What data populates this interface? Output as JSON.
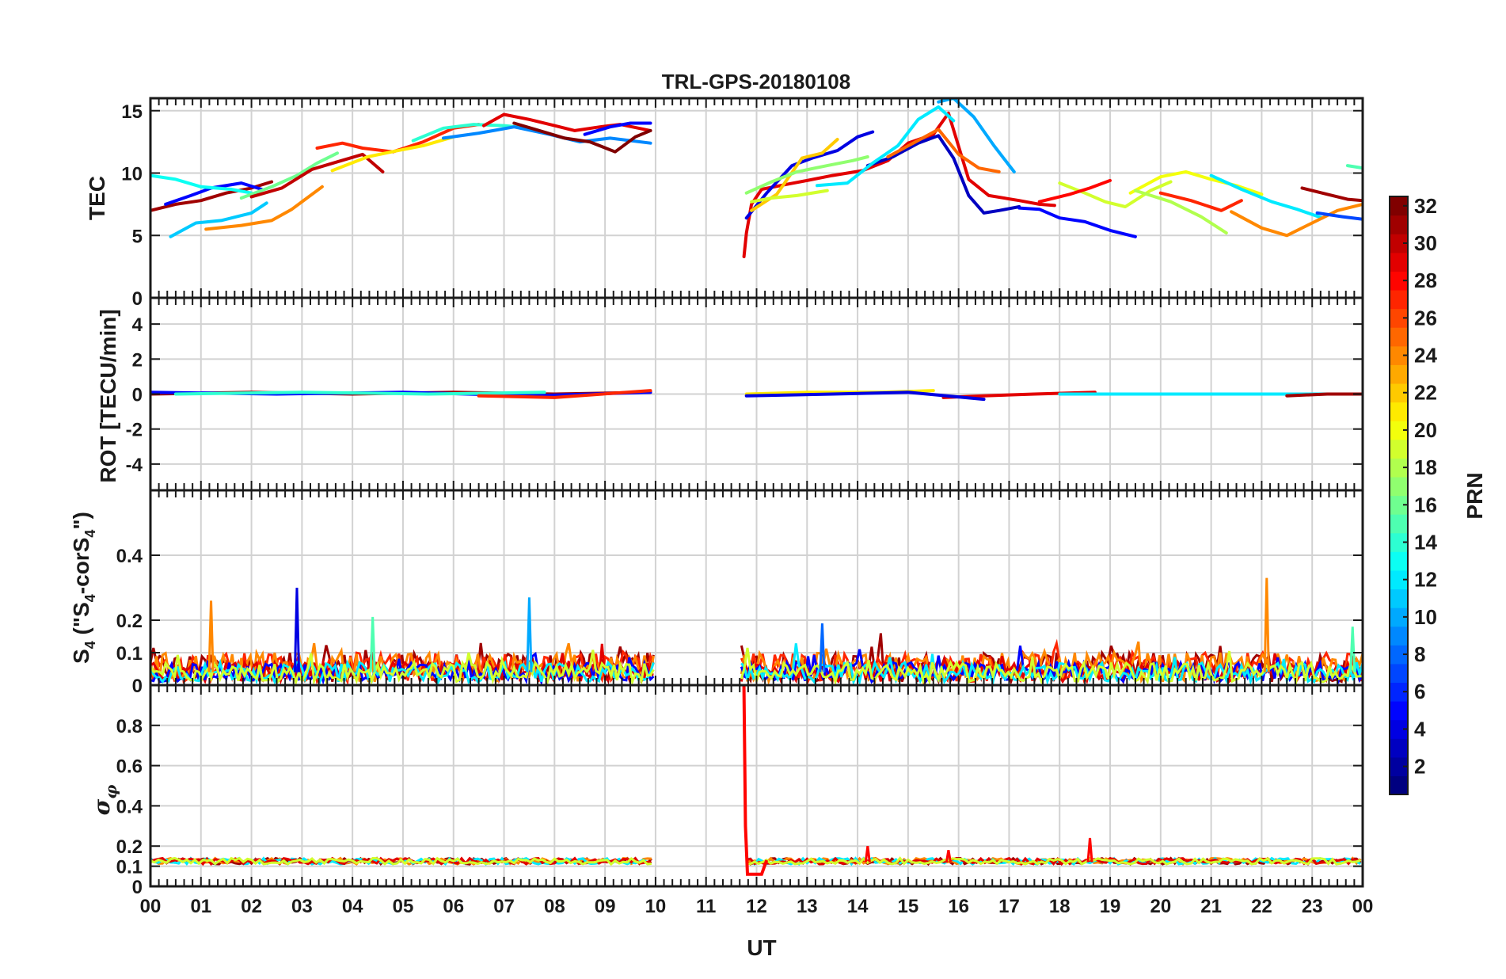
{
  "chart_data": {
    "type": "line",
    "title": "TRL-GPS-20180108",
    "xlabel": "UT",
    "xlim": [
      0,
      24
    ],
    "x_tick_labels": [
      "00",
      "01",
      "02",
      "03",
      "04",
      "05",
      "06",
      "07",
      "08",
      "09",
      "10",
      "11",
      "12",
      "13",
      "14",
      "15",
      "16",
      "17",
      "18",
      "19",
      "20",
      "21",
      "22",
      "23",
      "00"
    ],
    "grid": true,
    "data_gap_hours": [
      10.0,
      11.7
    ],
    "colorbar": {
      "label": "PRN",
      "range": [
        1,
        32
      ],
      "colormap": "jet",
      "tick_labels": [
        "2",
        "4",
        "6",
        "8",
        "10",
        "12",
        "14",
        "16",
        "18",
        "20",
        "22",
        "24",
        "26",
        "28",
        "30",
        "32"
      ]
    },
    "panels": [
      {
        "name": "TEC",
        "ylabel": "TEC",
        "ylim": [
          0,
          16
        ],
        "y_ticks": [
          0,
          5,
          10,
          15
        ],
        "y_tick_labels": [
          "0",
          "5",
          "10",
          "15"
        ],
        "series": [
          {
            "prn": 31,
            "x": [
              0.0,
              0.5,
              1.0,
              1.5,
              2.0,
              2.4
            ],
            "y": [
              7.0,
              7.5,
              7.8,
              8.4,
              8.8,
              9.3
            ]
          },
          {
            "prn": 5,
            "x": [
              0.3,
              0.8,
              1.2,
              1.8,
              2.2
            ],
            "y": [
              7.5,
              8.2,
              8.8,
              9.2,
              8.7
            ]
          },
          {
            "prn": 13,
            "x": [
              0.0,
              0.5,
              1.0,
              1.6,
              2.0
            ],
            "y": [
              9.8,
              9.5,
              8.9,
              8.7,
              8.4
            ]
          },
          {
            "prn": 11,
            "x": [
              0.4,
              0.9,
              1.4,
              2.0,
              2.3
            ],
            "y": [
              4.9,
              6.0,
              6.2,
              6.8,
              7.6
            ]
          },
          {
            "prn": 24,
            "x": [
              1.1,
              1.8,
              2.4,
              2.8,
              3.4
            ],
            "y": [
              5.5,
              5.8,
              6.2,
              7.1,
              8.9
            ]
          },
          {
            "prn": 16,
            "x": [
              1.8,
              2.4,
              2.9,
              3.3,
              3.7
            ],
            "y": [
              8.0,
              8.9,
              9.8,
              10.8,
              11.6
            ]
          },
          {
            "prn": 30,
            "x": [
              2.0,
              2.6,
              3.2,
              3.7,
              4.2,
              4.6
            ],
            "y": [
              8.1,
              8.8,
              10.3,
              10.9,
              11.5,
              10.1
            ]
          },
          {
            "prn": 27,
            "x": [
              3.3,
              3.8,
              4.2,
              4.8,
              5.4,
              6.0,
              6.5
            ],
            "y": [
              12.0,
              12.4,
              12.0,
              11.7,
              12.5,
              13.6,
              13.9
            ]
          },
          {
            "prn": 21,
            "x": [
              3.6,
              4.3,
              4.9,
              5.4,
              6.0
            ],
            "y": [
              10.2,
              11.3,
              11.8,
              12.2,
              12.9
            ]
          },
          {
            "prn": 14,
            "x": [
              5.2,
              5.8,
              6.4,
              7.0,
              7.5
            ],
            "y": [
              12.6,
              13.6,
              13.9,
              13.8,
              13.6
            ]
          },
          {
            "prn": 9,
            "x": [
              5.8,
              6.5,
              7.2,
              7.9,
              8.5,
              9.1,
              9.9
            ],
            "y": [
              12.8,
              13.2,
              13.7,
              13.1,
              12.5,
              12.8,
              12.4
            ]
          },
          {
            "prn": 29,
            "x": [
              6.6,
              7.0,
              7.5,
              8.0,
              8.4,
              8.9,
              9.3,
              9.9
            ],
            "y": [
              13.8,
              14.7,
              14.3,
              13.8,
              13.4,
              13.7,
              13.9,
              13.4
            ]
          },
          {
            "prn": 32,
            "x": [
              7.2,
              7.7,
              8.2,
              8.7,
              9.2,
              9.6,
              9.9
            ],
            "y": [
              14.0,
              13.4,
              12.8,
              12.5,
              11.7,
              12.9,
              13.4
            ]
          },
          {
            "prn": 5,
            "x": [
              8.6,
              9.1,
              9.5,
              9.9
            ],
            "y": [
              13.1,
              13.7,
              14.0,
              14.0
            ]
          },
          {
            "prn": 29,
            "x": [
              11.75,
              11.8,
              11.9,
              12.1,
              12.6,
              13.0,
              13.5,
              14.1,
              14.6,
              15.0,
              15.5,
              15.8,
              16.2,
              16.6,
              17.2,
              17.6,
              17.9
            ],
            "y": [
              3.3,
              5.2,
              7.5,
              8.7,
              9.1,
              9.4,
              9.8,
              10.2,
              11.0,
              12.4,
              13.1,
              14.8,
              9.5,
              8.2,
              7.8,
              7.5,
              7.4
            ]
          },
          {
            "prn": 4,
            "x": [
              11.8,
              12.2,
              12.7,
              13.1,
              13.6,
              14.0,
              14.3
            ],
            "y": [
              6.4,
              8.4,
              10.6,
              11.2,
              11.8,
              12.9,
              13.3
            ]
          },
          {
            "prn": 22,
            "x": [
              11.9,
              12.4,
              12.9,
              13.3,
              13.6
            ],
            "y": [
              7.0,
              8.3,
              11.2,
              11.6,
              12.7
            ]
          },
          {
            "prn": 17,
            "x": [
              11.8,
              12.3,
              12.8,
              13.4,
              13.9,
              14.2
            ],
            "y": [
              8.4,
              9.3,
              10.1,
              10.6,
              11.0,
              11.3
            ]
          },
          {
            "prn": 19,
            "x": [
              11.9,
              12.3,
              12.8,
              13.4
            ],
            "y": [
              7.7,
              8.0,
              8.2,
              8.6
            ]
          },
          {
            "prn": 3,
            "x": [
              14.2,
              14.7,
              15.2,
              15.6,
              15.9,
              16.2,
              16.5,
              16.8,
              17.2
            ],
            "y": [
              10.6,
              11.3,
              12.4,
              13.0,
              11.2,
              8.2,
              6.8,
              7.0,
              7.3
            ]
          },
          {
            "prn": 12,
            "x": [
              13.2,
              13.8,
              14.3,
              14.8,
              15.2,
              15.6,
              15.9
            ],
            "y": [
              9.0,
              9.2,
              10.8,
              12.2,
              14.3,
              15.3,
              14.2
            ]
          },
          {
            "prn": 10,
            "x": [
              15.6,
              15.9,
              16.3,
              16.7,
              17.1
            ],
            "y": [
              15.7,
              16.0,
              14.5,
              12.2,
              10.1
            ]
          },
          {
            "prn": 25,
            "x": [
              14.6,
              15.1,
              15.6,
              16.0,
              16.4,
              16.8
            ],
            "y": [
              11.3,
              12.4,
              13.5,
              11.5,
              10.4,
              10.1
            ]
          },
          {
            "prn": 5,
            "x": [
              17.2,
              17.6,
              18.0,
              18.5,
              19.0,
              19.5
            ],
            "y": [
              7.2,
              7.1,
              6.4,
              6.1,
              5.4,
              4.9
            ]
          },
          {
            "prn": 19,
            "x": [
              18.0,
              18.5,
              18.9,
              19.3,
              19.8,
              20.2
            ],
            "y": [
              9.2,
              8.4,
              7.7,
              7.3,
              8.6,
              9.3
            ]
          },
          {
            "prn": 28,
            "x": [
              17.6,
              18.2,
              18.6,
              19.0
            ],
            "y": [
              7.7,
              8.3,
              8.8,
              9.4
            ]
          },
          {
            "prn": 20,
            "x": [
              19.4,
              20.0,
              20.5,
              21.0,
              21.5,
              22.0
            ],
            "y": [
              8.4,
              9.7,
              10.1,
              9.5,
              9.0,
              8.3
            ]
          },
          {
            "prn": 18,
            "x": [
              19.5,
              20.2,
              20.8,
              21.3
            ],
            "y": [
              8.6,
              7.7,
              6.5,
              5.2
            ]
          },
          {
            "prn": 12,
            "x": [
              21.0,
              21.6,
              22.2,
              22.7,
              23.2
            ],
            "y": [
              9.8,
              8.7,
              7.7,
              7.1,
              6.4
            ]
          },
          {
            "prn": 27,
            "x": [
              20.0,
              20.6,
              21.2,
              21.6
            ],
            "y": [
              8.4,
              7.8,
              7.0,
              7.8
            ]
          },
          {
            "prn": 24,
            "x": [
              21.4,
              22.0,
              22.5,
              23.0,
              23.5,
              24.0
            ],
            "y": [
              6.9,
              5.6,
              5.0,
              6.0,
              7.0,
              7.5
            ]
          },
          {
            "prn": 31,
            "x": [
              22.8,
              23.3,
              23.7,
              24.0
            ],
            "y": [
              8.8,
              8.3,
              7.9,
              7.8
            ]
          },
          {
            "prn": 15,
            "x": [
              23.7,
              24.0
            ],
            "y": [
              10.6,
              10.4
            ]
          },
          {
            "prn": 7,
            "x": [
              23.1,
              23.6,
              24.0
            ],
            "y": [
              6.8,
              6.5,
              6.3
            ]
          }
        ]
      },
      {
        "name": "ROT",
        "ylabel": "ROT [TECU/min]",
        "ylim": [
          -5.5,
          5.5
        ],
        "y_ticks": [
          -4,
          -2,
          0,
          2,
          4
        ],
        "y_tick_labels": [
          "-4",
          "-2",
          "0",
          "2",
          "4"
        ],
        "series": [
          {
            "prn": 31,
            "x": [
              0.0,
              2.0,
              4.0,
              6.0,
              8.0,
              9.9
            ],
            "y": [
              0.0,
              0.1,
              0.0,
              0.1,
              0.0,
              0.1
            ]
          },
          {
            "prn": 5,
            "x": [
              0.0,
              2.5,
              5.0,
              7.5,
              9.9
            ],
            "y": [
              0.1,
              0.0,
              0.1,
              -0.1,
              0.1
            ]
          },
          {
            "prn": 14,
            "x": [
              0.5,
              3.0,
              5.5,
              7.8
            ],
            "y": [
              0.0,
              0.1,
              0.0,
              0.1
            ]
          },
          {
            "prn": 27,
            "x": [
              6.5,
              8.0,
              9.9
            ],
            "y": [
              -0.1,
              -0.2,
              0.2
            ]
          },
          {
            "prn": 21,
            "x": [
              11.8,
              13.0,
              14.5,
              15.5
            ],
            "y": [
              0.0,
              0.1,
              0.1,
              0.2
            ]
          },
          {
            "prn": 29,
            "x": [
              15.7,
              16.5,
              17.5,
              18.7
            ],
            "y": [
              -0.2,
              -0.1,
              0.0,
              0.1
            ]
          },
          {
            "prn": 4,
            "x": [
              11.8,
              13.5,
              15.0,
              16.5
            ],
            "y": [
              -0.1,
              0.0,
              0.1,
              -0.3
            ]
          },
          {
            "prn": 12,
            "x": [
              18.0,
              20.0,
              22.0,
              24.0
            ],
            "y": [
              0.0,
              0.0,
              0.0,
              0.0
            ]
          },
          {
            "prn": 31,
            "x": [
              22.5,
              23.3,
              24.0
            ],
            "y": [
              -0.1,
              0.0,
              0.0
            ]
          }
        ]
      },
      {
        "name": "S4",
        "ylabel": "S_4 (\"S_4-corS_4\")",
        "ylim": [
          0,
          0.6
        ],
        "y_ticks": [
          0,
          0.1,
          0.2,
          0.4
        ],
        "y_tick_labels": [
          "0",
          "0.1",
          "0.2",
          "0.4"
        ],
        "noise_level": 0.05,
        "spikes": [
          {
            "prn": 24,
            "x": 1.2,
            "y": 0.26
          },
          {
            "prn": 4,
            "x": 2.9,
            "y": 0.3
          },
          {
            "prn": 15,
            "x": 4.4,
            "y": 0.21
          },
          {
            "prn": 10,
            "x": 7.5,
            "y": 0.27
          },
          {
            "prn": 8,
            "x": 13.3,
            "y": 0.19
          },
          {
            "prn": 24,
            "x": 22.1,
            "y": 0.33
          },
          {
            "prn": 15,
            "x": 23.8,
            "y": 0.18
          }
        ]
      },
      {
        "name": "sigma_phi",
        "ylabel": "σ_φ",
        "ylim": [
          0,
          1.0
        ],
        "y_ticks": [
          0,
          0.1,
          0.2,
          0.4,
          0.6,
          0.8
        ],
        "y_tick_labels": [
          "0",
          "0.1",
          "0.2",
          "0.4",
          "0.6",
          "0.8"
        ],
        "baseline": 0.12,
        "spikes": [
          {
            "prn": 28,
            "x": 11.75,
            "y": 1.0
          },
          {
            "prn": 28,
            "x": 14.2,
            "y": 0.2
          },
          {
            "prn": 28,
            "x": 15.8,
            "y": 0.18
          },
          {
            "prn": 28,
            "x": 18.6,
            "y": 0.24
          }
        ]
      }
    ]
  }
}
